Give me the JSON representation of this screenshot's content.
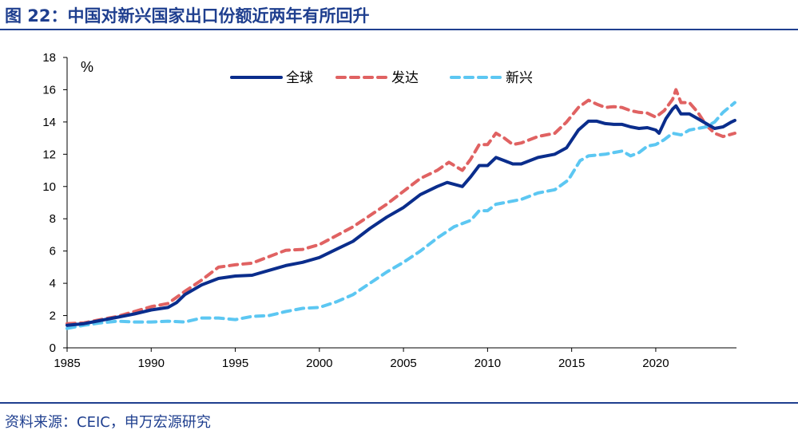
{
  "title": "图 22：中国对新兴国家出口份额近两年有所回升",
  "source": "资料来源：CEIC，申万宏源研究",
  "chart_data": {
    "type": "line",
    "ylabel": "%",
    "xlim": [
      1985,
      2024.8
    ],
    "ylim": [
      0,
      18
    ],
    "x_ticks": [
      "1985",
      "1990",
      "1995",
      "2000",
      "2005",
      "2010",
      "2015",
      "2020"
    ],
    "y_ticks": [
      "0",
      "2",
      "4",
      "6",
      "8",
      "10",
      "12",
      "14",
      "16",
      "18"
    ],
    "grid": false,
    "legend_position": "top-center",
    "series": [
      {
        "name": "全球",
        "color": "#0a2d8c",
        "style": "solid",
        "points": [
          [
            1985,
            1.4
          ],
          [
            1986,
            1.5
          ],
          [
            1987,
            1.7
          ],
          [
            1988,
            1.9
          ],
          [
            1989,
            2.1
          ],
          [
            1990,
            2.35
          ],
          [
            1991,
            2.5
          ],
          [
            1991.5,
            2.8
          ],
          [
            1992,
            3.3
          ],
          [
            1993,
            3.9
          ],
          [
            1994,
            4.3
          ],
          [
            1995,
            4.45
          ],
          [
            1996,
            4.5
          ],
          [
            1997,
            4.8
          ],
          [
            1998,
            5.1
          ],
          [
            1999,
            5.3
          ],
          [
            2000,
            5.6
          ],
          [
            2001,
            6.1
          ],
          [
            2002,
            6.6
          ],
          [
            2003,
            7.4
          ],
          [
            2004,
            8.1
          ],
          [
            2005,
            8.7
          ],
          [
            2006,
            9.5
          ],
          [
            2007,
            10.0
          ],
          [
            2007.6,
            10.25
          ],
          [
            2008.5,
            10.0
          ],
          [
            2009,
            10.6
          ],
          [
            2009.5,
            11.3
          ],
          [
            2010,
            11.3
          ],
          [
            2010.5,
            11.8
          ],
          [
            2011,
            11.6
          ],
          [
            2011.5,
            11.4
          ],
          [
            2012,
            11.4
          ],
          [
            2013,
            11.8
          ],
          [
            2014,
            12.0
          ],
          [
            2014.7,
            12.4
          ],
          [
            2015.4,
            13.5
          ],
          [
            2016,
            14.05
          ],
          [
            2016.5,
            14.05
          ],
          [
            2017,
            13.9
          ],
          [
            2017.5,
            13.85
          ],
          [
            2018,
            13.85
          ],
          [
            2018.5,
            13.7
          ],
          [
            2019,
            13.6
          ],
          [
            2019.5,
            13.65
          ],
          [
            2020,
            13.5
          ],
          [
            2020.2,
            13.3
          ],
          [
            2020.6,
            14.2
          ],
          [
            2021,
            14.8
          ],
          [
            2021.2,
            15.0
          ],
          [
            2021.5,
            14.5
          ],
          [
            2022,
            14.5
          ],
          [
            2022.5,
            14.2
          ],
          [
            2023,
            13.9
          ],
          [
            2023.5,
            13.6
          ],
          [
            2024,
            13.7
          ],
          [
            2024.5,
            14.0
          ],
          [
            2024.7,
            14.1
          ]
        ]
      },
      {
        "name": "发达",
        "color": "#e06262",
        "style": "dashed",
        "points": [
          [
            1985,
            1.5
          ],
          [
            1986,
            1.55
          ],
          [
            1987,
            1.75
          ],
          [
            1988,
            1.95
          ],
          [
            1989,
            2.25
          ],
          [
            1990,
            2.55
          ],
          [
            1991,
            2.75
          ],
          [
            1992,
            3.5
          ],
          [
            1993,
            4.2
          ],
          [
            1994,
            5.0
          ],
          [
            1995,
            5.15
          ],
          [
            1996,
            5.25
          ],
          [
            1997,
            5.65
          ],
          [
            1998,
            6.05
          ],
          [
            1999,
            6.1
          ],
          [
            2000,
            6.4
          ],
          [
            2001,
            6.95
          ],
          [
            2002,
            7.5
          ],
          [
            2003,
            8.2
          ],
          [
            2004,
            8.9
          ],
          [
            2005,
            9.7
          ],
          [
            2006,
            10.5
          ],
          [
            2007,
            11.0
          ],
          [
            2007.7,
            11.5
          ],
          [
            2008.5,
            11.0
          ],
          [
            2009,
            11.7
          ],
          [
            2009.5,
            12.6
          ],
          [
            2010,
            12.6
          ],
          [
            2010.5,
            13.3
          ],
          [
            2011,
            13.0
          ],
          [
            2011.5,
            12.6
          ],
          [
            2012,
            12.7
          ],
          [
            2013,
            13.1
          ],
          [
            2014,
            13.3
          ],
          [
            2014.7,
            14.0
          ],
          [
            2015.4,
            14.9
          ],
          [
            2016,
            15.35
          ],
          [
            2016.5,
            15.1
          ],
          [
            2017,
            14.9
          ],
          [
            2017.5,
            14.95
          ],
          [
            2018,
            14.9
          ],
          [
            2018.5,
            14.7
          ],
          [
            2019,
            14.6
          ],
          [
            2019.5,
            14.55
          ],
          [
            2020,
            14.3
          ],
          [
            2020.5,
            14.7
          ],
          [
            2021,
            15.4
          ],
          [
            2021.2,
            16.0
          ],
          [
            2021.5,
            15.2
          ],
          [
            2022,
            15.2
          ],
          [
            2022.5,
            14.6
          ],
          [
            2023,
            13.8
          ],
          [
            2023.5,
            13.3
          ],
          [
            2024,
            13.1
          ],
          [
            2024.7,
            13.3
          ]
        ]
      },
      {
        "name": "新兴",
        "color": "#5cc7f2",
        "style": "dashed",
        "points": [
          [
            1985,
            1.2
          ],
          [
            1986,
            1.4
          ],
          [
            1987,
            1.55
          ],
          [
            1988,
            1.65
          ],
          [
            1989,
            1.6
          ],
          [
            1990,
            1.6
          ],
          [
            1991,
            1.65
          ],
          [
            1992,
            1.6
          ],
          [
            1993,
            1.85
          ],
          [
            1994,
            1.85
          ],
          [
            1995,
            1.75
          ],
          [
            1996,
            1.95
          ],
          [
            1997,
            2.0
          ],
          [
            1998,
            2.25
          ],
          [
            1999,
            2.45
          ],
          [
            2000,
            2.5
          ],
          [
            2001,
            2.85
          ],
          [
            2002,
            3.3
          ],
          [
            2003,
            4.0
          ],
          [
            2004,
            4.7
          ],
          [
            2005,
            5.3
          ],
          [
            2006,
            6.0
          ],
          [
            2007,
            6.8
          ],
          [
            2008,
            7.5
          ],
          [
            2009,
            7.9
          ],
          [
            2009.5,
            8.5
          ],
          [
            2010,
            8.5
          ],
          [
            2010.5,
            8.9
          ],
          [
            2011,
            9.0
          ],
          [
            2012,
            9.2
          ],
          [
            2013,
            9.6
          ],
          [
            2014,
            9.8
          ],
          [
            2014.8,
            10.4
          ],
          [
            2015.5,
            11.6
          ],
          [
            2016,
            11.9
          ],
          [
            2017,
            12.0
          ],
          [
            2018,
            12.2
          ],
          [
            2018.5,
            11.9
          ],
          [
            2019,
            12.1
          ],
          [
            2019.5,
            12.5
          ],
          [
            2020,
            12.6
          ],
          [
            2020.5,
            12.9
          ],
          [
            2021,
            13.3
          ],
          [
            2021.5,
            13.2
          ],
          [
            2022,
            13.5
          ],
          [
            2022.5,
            13.6
          ],
          [
            2023,
            13.7
          ],
          [
            2023.5,
            14.0
          ],
          [
            2024,
            14.6
          ],
          [
            2024.7,
            15.2
          ]
        ]
      }
    ]
  }
}
